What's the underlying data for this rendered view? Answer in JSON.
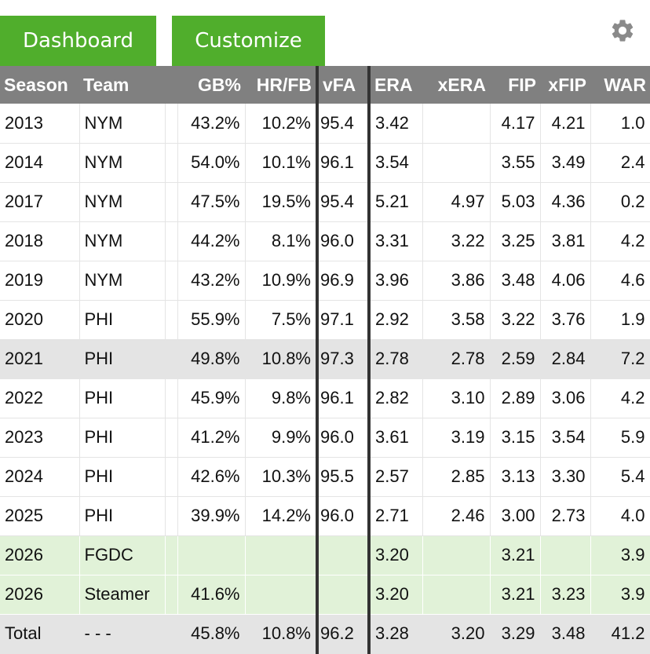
{
  "tabs": {
    "dashboard_label": "Dashboard",
    "customize_label": "Customize"
  },
  "settings_icon": "gear-icon",
  "colors": {
    "tab_green": "#50ae2c",
    "header_gray": "#808080",
    "projection_green": "#e1f2d8",
    "highlight_gray": "#e4e4e4"
  },
  "table": {
    "headers": [
      "Season",
      "Team",
      "",
      "GB%",
      "HR/FB",
      "vFA",
      "ERA",
      "xERA",
      "FIP",
      "xFIP",
      "WAR"
    ],
    "rows": [
      [
        "2013",
        "NYM",
        "",
        "43.2%",
        "10.2%",
        "95.4",
        "3.42",
        "",
        "4.17",
        "4.21",
        "1.0"
      ],
      [
        "2014",
        "NYM",
        "",
        "54.0%",
        "10.1%",
        "96.1",
        "3.54",
        "",
        "3.55",
        "3.49",
        "2.4"
      ],
      [
        "2017",
        "NYM",
        "",
        "47.5%",
        "19.5%",
        "95.4",
        "5.21",
        "4.97",
        "5.03",
        "4.36",
        "0.2"
      ],
      [
        "2018",
        "NYM",
        "",
        "44.2%",
        "8.1%",
        "96.0",
        "3.31",
        "3.22",
        "3.25",
        "3.81",
        "4.2"
      ],
      [
        "2019",
        "NYM",
        "",
        "43.2%",
        "10.9%",
        "96.9",
        "3.96",
        "3.86",
        "3.48",
        "4.06",
        "4.6"
      ],
      [
        "2020",
        "PHI",
        "",
        "55.9%",
        "7.5%",
        "97.1",
        "2.92",
        "3.58",
        "3.22",
        "3.76",
        "1.9"
      ],
      [
        "2021",
        "PHI",
        "",
        "49.8%",
        "10.8%",
        "97.3",
        "2.78",
        "2.78",
        "2.59",
        "2.84",
        "7.2"
      ],
      [
        "2022",
        "PHI",
        "",
        "45.9%",
        "9.8%",
        "96.1",
        "2.82",
        "3.10",
        "2.89",
        "3.06",
        "4.2"
      ],
      [
        "2023",
        "PHI",
        "",
        "41.2%",
        "9.9%",
        "96.0",
        "3.61",
        "3.19",
        "3.15",
        "3.54",
        "5.9"
      ],
      [
        "2024",
        "PHI",
        "",
        "42.6%",
        "10.3%",
        "95.5",
        "2.57",
        "2.85",
        "3.13",
        "3.30",
        "5.4"
      ],
      [
        "2025",
        "PHI",
        "",
        "39.9%",
        "14.2%",
        "96.0",
        "2.71",
        "2.46",
        "3.00",
        "2.73",
        "4.0"
      ],
      [
        "2026",
        "FGDC",
        "",
        "",
        "",
        "",
        "3.20",
        "",
        "3.21",
        "",
        "3.9"
      ],
      [
        "2026",
        "Steamer",
        "",
        "41.6%",
        "",
        "",
        "3.20",
        "",
        "3.21",
        "3.23",
        "3.9"
      ],
      [
        "Total",
        "- - -",
        "",
        "45.8%",
        "10.8%",
        "96.2",
        "3.28",
        "3.20",
        "3.29",
        "3.48",
        "41.2"
      ]
    ]
  }
}
